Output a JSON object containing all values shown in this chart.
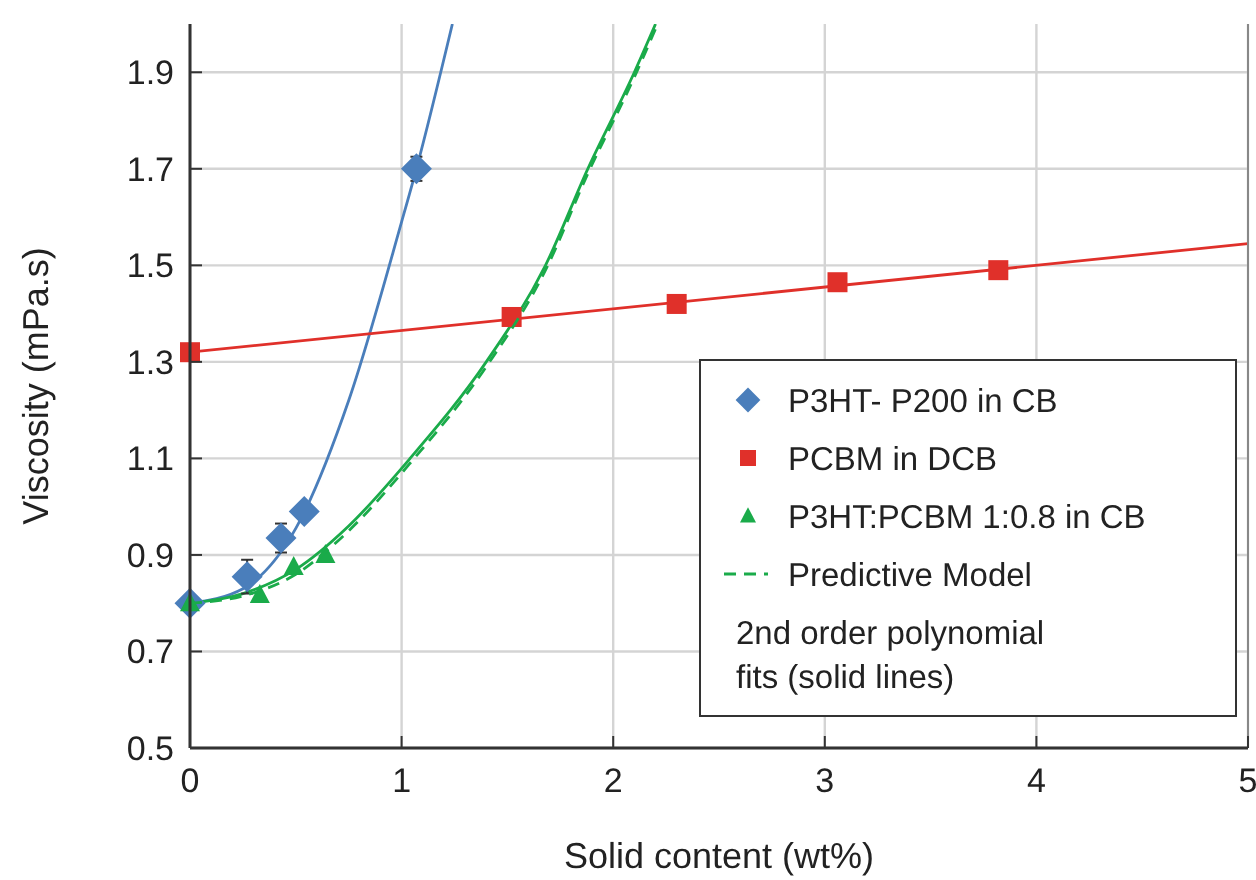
{
  "chart_data": {
    "type": "scatter",
    "xlabel": "Solid content (wt%)",
    "ylabel": "Viscosity (mPa.s)",
    "xlim": [
      0,
      5
    ],
    "xticks": [
      0,
      1,
      2,
      3,
      4,
      5
    ],
    "ylim": [
      0.5,
      2.0
    ],
    "yticks": [
      0.5,
      0.7,
      0.9,
      1.1,
      1.3,
      1.5,
      1.7,
      1.9
    ],
    "grid": true,
    "legend": "bottom right",
    "annotations": [
      "2nd order polynomial fits (solid lines)"
    ],
    "series": [
      {
        "type": "line",
        "color": "#4a7ebb",
        "marker": "none",
        "line_style": "solid",
        "x": [
          0,
          0.25,
          0.5,
          0.75,
          1.0,
          1.07,
          1.24
        ],
        "values": [
          0.8,
          0.83,
          0.955,
          1.22,
          1.59,
          1.7,
          2.0
        ]
      },
      {
        "type": "line",
        "color": "#e0302a",
        "marker": "none",
        "line_style": "solid",
        "x": [
          0,
          5
        ],
        "values": [
          1.32,
          1.545
        ]
      },
      {
        "type": "line",
        "color": "#1aab4a",
        "marker": "none",
        "line_style": "solid",
        "x": [
          0,
          0.25,
          0.5,
          0.75,
          1.04,
          1.4,
          1.68,
          1.88,
          2.1,
          2.2
        ],
        "values": [
          0.8,
          0.82,
          0.87,
          0.96,
          1.1,
          1.3,
          1.5,
          1.7,
          1.9,
          2.0
        ]
      },
      {
        "name": "P3HT- P200 in CB",
        "color": "#4a7ebb",
        "marker": "diamond",
        "x": [
          0,
          0.27,
          0.43,
          0.54,
          1.07
        ],
        "values": [
          0.8,
          0.855,
          0.935,
          0.99,
          1.7
        ],
        "errors": [
          null,
          0.035,
          0.03,
          null,
          0.025
        ]
      },
      {
        "name": "PCBM in DCB",
        "color": "#e0302a",
        "marker": "square",
        "x": [
          0,
          1.52,
          2.3,
          3.06,
          3.82
        ],
        "values": [
          1.32,
          1.393,
          1.42,
          1.465,
          1.49
        ]
      },
      {
        "name": "P3HT:PCBM 1:0.8 in CB",
        "color": "#1aab4a",
        "marker": "triangle",
        "x": [
          0,
          0.33,
          0.49,
          0.64
        ],
        "values": [
          0.8,
          0.817,
          0.875,
          0.9
        ]
      },
      {
        "type": "line",
        "name": "Predictive Model",
        "color": "#1aab4a",
        "marker": "none",
        "line_style": "dashed",
        "x": [
          0,
          0.25,
          0.5,
          0.75,
          1.04,
          1.4,
          1.68,
          1.88,
          2.1,
          2.21
        ],
        "values": [
          0.8,
          0.815,
          0.86,
          0.95,
          1.09,
          1.29,
          1.49,
          1.69,
          1.89,
          2.0
        ]
      }
    ]
  }
}
